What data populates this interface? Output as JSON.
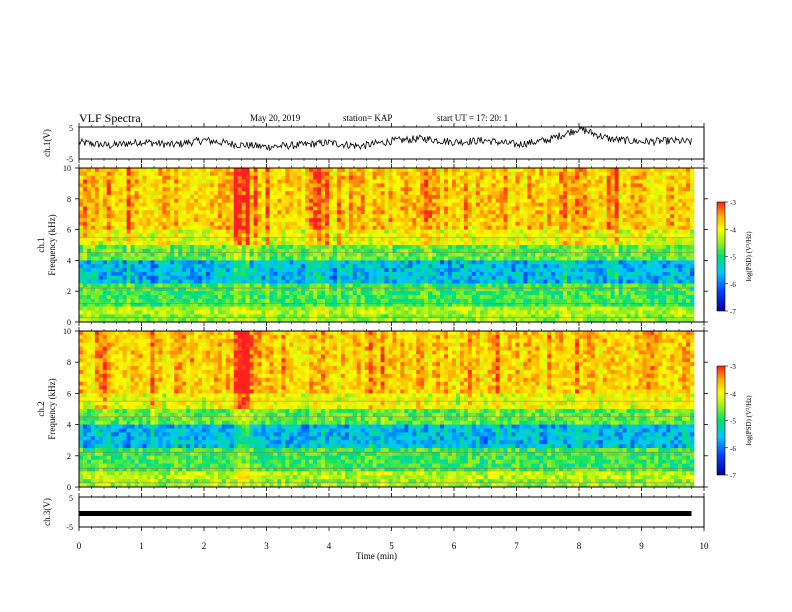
{
  "header": {
    "title": "VLF Spectra",
    "date": "May 20, 2019",
    "station": "station= KAP",
    "start": "start  UT  =   17: 20: 1"
  },
  "colorbar": {
    "label": "log(PSD) (V²/Hz)",
    "ticks": [
      "-3",
      "-4",
      "-5",
      "-6",
      "-7"
    ]
  },
  "chart_data": [
    {
      "type": "line",
      "panel": "ch1-waveform",
      "ylabel": "ch.1(V)",
      "ylim": [
        -5,
        5
      ],
      "yticks": [
        "5",
        "-5"
      ],
      "description_values": "noisy trace mostly between -1.5 and 1.5 V, excursions to ~4.5 V near 8 min",
      "x": [
        0,
        0.5,
        1,
        1.5,
        2,
        2.5,
        3,
        3.5,
        4,
        4.5,
        5,
        5.5,
        6,
        6.5,
        7,
        7.5,
        8,
        8.5,
        9,
        9.5,
        9.8
      ],
      "values": [
        0.2,
        -0.8,
        0.4,
        -0.6,
        0.9,
        -0.4,
        -1.2,
        -0.7,
        0.1,
        -1.0,
        0.6,
        1.4,
        0.3,
        0.8,
        -0.5,
        0.9,
        4.5,
        1.2,
        0.4,
        0.7,
        0.3
      ]
    },
    {
      "type": "heatmap",
      "panel": "ch1-spectrogram",
      "ylabel_top": "ch.1",
      "ylabel": "Frequency (kHz)",
      "ylim": [
        0,
        10
      ],
      "yticks": [
        "0",
        "2",
        "4",
        "6",
        "8",
        "10"
      ],
      "zlim": [
        -7,
        -3
      ],
      "colormap": [
        "#0000a0",
        "#0040ff",
        "#00c8ff",
        "#00e070",
        "#90ee20",
        "#ffff00",
        "#ffb000",
        "#ff2020"
      ]
    },
    {
      "type": "heatmap",
      "panel": "ch2-spectrogram",
      "ylabel_top": "ch.2",
      "ylabel": "Frequency (kHz)",
      "ylim": [
        0,
        10
      ],
      "yticks": [
        "0",
        "2",
        "4",
        "6",
        "8",
        "10"
      ],
      "zlim": [
        -7,
        -3
      ]
    },
    {
      "type": "line",
      "panel": "ch3-waveform",
      "ylabel": "ch.3(V)",
      "ylim": [
        -5,
        5
      ],
      "yticks": [
        "5",
        "-5"
      ],
      "x": [
        0,
        9.8
      ],
      "values": [
        -0.5,
        -0.5
      ]
    }
  ],
  "xaxis": {
    "label": "Time (min)",
    "xlim": [
      0,
      10
    ],
    "ticks": [
      "0",
      "1",
      "2",
      "3",
      "4",
      "5",
      "6",
      "7",
      "8",
      "9",
      "10"
    ]
  }
}
